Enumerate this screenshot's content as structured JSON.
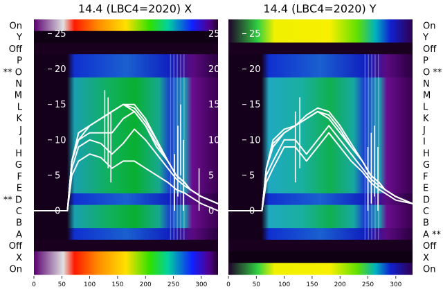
{
  "chart_data": {
    "type": "heatmap",
    "row_labels_top_to_bottom": [
      "On",
      "Y",
      "Off",
      "P",
      "** O",
      "N",
      "M",
      "L",
      "K",
      "J",
      "I",
      "H",
      "G",
      "F",
      "E",
      "** D",
      "C",
      "B",
      "A",
      "Off",
      "X",
      "On"
    ],
    "row_labels_right_top_to_bottom": [
      "On",
      "Y",
      "Off",
      "P",
      "O **",
      "N",
      "M",
      "L",
      "K",
      "J",
      "I",
      "H",
      "G",
      "F",
      "E",
      "D",
      "C",
      "B",
      "A **",
      "Off",
      "X",
      "On"
    ],
    "panels": [
      {
        "title": "14.4 (LBC4=2020) X",
        "xlim": [
          0,
          330
        ],
        "xticks": [
          0,
          50,
          100,
          150,
          200,
          250,
          300
        ],
        "overlay_ylim": [
          -9,
          27
        ],
        "overlay_yticks": [
          0,
          5,
          10,
          15,
          20,
          25
        ],
        "overlay_lines": [
          {
            "x": [
              0,
              60,
              68,
              80,
              100,
              120,
              140,
              160,
              180,
              200,
              220,
              240,
              255,
              270,
              280,
              300,
              330
            ],
            "y": [
              0,
              0,
              7,
              10,
              12,
              13,
              14,
              15,
              15,
              13,
              10,
              7,
              5,
              4,
              3,
              2,
              1
            ]
          },
          {
            "x": [
              0,
              60,
              68,
              80,
              100,
              120,
              140,
              160,
              180,
              200,
              220,
              240,
              255,
              270,
              280,
              300,
              330
            ],
            "y": [
              0,
              0,
              7,
              11,
              12,
              13,
              14,
              15,
              14.5,
              12.5,
              10,
              7,
              5,
              4,
              3,
              2,
              1
            ]
          },
          {
            "x": [
              0,
              60,
              68,
              80,
              100,
              120,
              140,
              160,
              180,
              200,
              220,
              240,
              255,
              270,
              280,
              300,
              330
            ],
            "y": [
              0,
              0,
              7,
              11,
              12,
              13,
              14,
              15,
              14,
              12,
              9.5,
              7,
              5,
              4,
              3,
              2,
              1
            ]
          },
          {
            "x": [
              0,
              60,
              68,
              80,
              100,
              120,
              140,
              160,
              180,
              200,
              220,
              240,
              255,
              270,
              280,
              300,
              330
            ],
            "y": [
              0,
              0,
              7,
              10,
              11,
              11,
              11,
              13,
              14,
              12,
              9,
              7,
              5,
              4,
              3,
              2,
              1
            ]
          },
          {
            "x": [
              0,
              60,
              68,
              80,
              100,
              120,
              140,
              160,
              180,
              200,
              220,
              240,
              255,
              270,
              280,
              300,
              330
            ],
            "y": [
              0,
              0,
              6,
              9,
              10,
              9.5,
              8,
              9.5,
              11.5,
              10,
              8,
              6,
              4.5,
              3.5,
              3,
              2,
              1
            ]
          },
          {
            "x": [
              0,
              60,
              68,
              80,
              100,
              120,
              140,
              160,
              180,
              200,
              220,
              240,
              255,
              270,
              280,
              300,
              330
            ],
            "y": [
              0,
              0,
              5,
              7,
              8,
              7.5,
              6,
              7,
              7,
              6,
              5,
              4,
              3,
              2.5,
              2,
              1,
              0
            ]
          }
        ],
        "spikes": [
          {
            "x": 127,
            "y": 17
          },
          {
            "x": 133,
            "y": 16
          },
          {
            "x": 138,
            "y": 14
          },
          {
            "x": 252,
            "y": 8
          },
          {
            "x": 258,
            "y": 12
          },
          {
            "x": 263,
            "y": 15
          },
          {
            "x": 268,
            "y": 10
          },
          {
            "x": 296,
            "y": 6
          }
        ]
      },
      {
        "title": "14.4 (LBC4=2020) Y",
        "xlim": [
          0,
          330
        ],
        "xticks": [
          0,
          50,
          100,
          150,
          200,
          250,
          300
        ],
        "overlay_ylim": [
          -9,
          27
        ],
        "overlay_yticks": [
          0,
          5,
          10,
          15,
          20,
          25
        ],
        "overlay_lines": [
          {
            "x": [
              0,
              60,
              68,
              80,
              100,
              120,
              140,
              160,
              180,
              200,
              220,
              240,
              255,
              270,
              280,
              300,
              330
            ],
            "y": [
              0,
              0,
              6,
              9,
              11,
              12,
              13,
              14,
              13,
              11,
              9,
              7,
              5,
              4,
              3,
              2,
              1
            ]
          },
          {
            "x": [
              0,
              60,
              68,
              80,
              100,
              120,
              140,
              160,
              180,
              200,
              220,
              240,
              255,
              270,
              280,
              300,
              330
            ],
            "y": [
              0,
              0,
              6,
              9.5,
              11,
              12,
              13,
              14,
              13.5,
              11.5,
              9,
              7,
              5,
              4,
              3,
              2,
              1
            ]
          },
          {
            "x": [
              0,
              60,
              68,
              80,
              100,
              120,
              140,
              160,
              180,
              200,
              220,
              240,
              255,
              270,
              280,
              300,
              330
            ],
            "y": [
              0,
              0,
              6,
              10,
              11.5,
              12,
              13.5,
              14.5,
              14,
              12,
              9.5,
              7,
              5,
              4,
              3,
              2,
              1
            ]
          },
          {
            "x": [
              0,
              60,
              68,
              80,
              100,
              120,
              140,
              160,
              180,
              200,
              220,
              240,
              255,
              270,
              280,
              300,
              330
            ],
            "y": [
              0,
              0,
              5,
              7,
              10,
              10,
              8,
              10,
              12,
              10,
              8,
              6,
              4.5,
              3.5,
              3,
              2,
              1
            ]
          },
          {
            "x": [
              0,
              60,
              68,
              80,
              100,
              120,
              140,
              160,
              180,
              200,
              220,
              240,
              255,
              270,
              280,
              300,
              330
            ],
            "y": [
              0,
              0,
              4,
              6,
              9,
              9,
              7,
              9,
              11,
              9,
              7,
              5.5,
              4,
              3,
              2.5,
              1.5,
              1
            ]
          }
        ],
        "spikes": [
          {
            "x": 120,
            "y": 14
          },
          {
            "x": 128,
            "y": 16
          },
          {
            "x": 250,
            "y": 9
          },
          {
            "x": 256,
            "y": 11
          },
          {
            "x": 262,
            "y": 12
          },
          {
            "x": 268,
            "y": 9
          }
        ]
      }
    ]
  },
  "colors": {
    "night": "#0f0013",
    "dark_row": "#19001f",
    "teal": "#1ba5b0",
    "green": "#08aa2a",
    "purple": "#6a0d8f",
    "blue": "#1020c0",
    "line": "#ffffff"
  }
}
